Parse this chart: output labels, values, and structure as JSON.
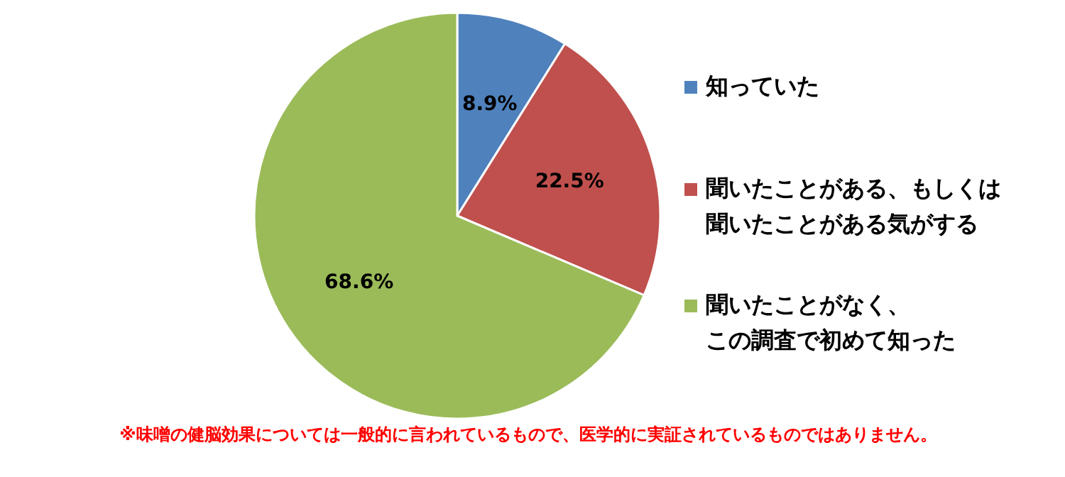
{
  "chart_data": {
    "type": "pie",
    "categories": [
      "知っていた",
      "聞いたことがある、もしくは聞いたことがある気がする",
      "聞いたことがなく、この調査で初めて知った"
    ],
    "values": [
      8.9,
      22.5,
      68.6
    ],
    "colors": [
      "#4f81bd",
      "#c0504d",
      "#9bbb59"
    ],
    "value_labels": [
      "8.9%",
      "22.5%",
      "68.6%"
    ],
    "legend": "right",
    "annotations": [
      "※味噌の健脳効果については一般的に言われているもので、医学的に実証されているものではありません。"
    ]
  }
}
